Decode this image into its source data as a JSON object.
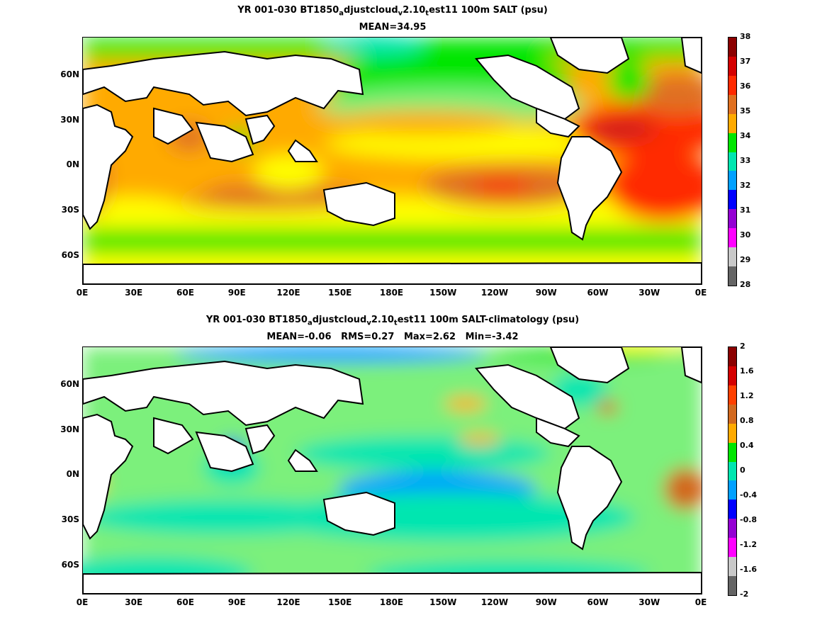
{
  "panels": [
    {
      "title_prefix": "YR 001-030 BT1850",
      "title_rest": "djustcloud",
      "title_mid": "2.10",
      "title_end": "est11 100m SALT (psu)",
      "subtitle": "MEAN=34.95",
      "colorbar": {
        "labels": [
          "38",
          "37",
          "36",
          "35",
          "34",
          "33",
          "32",
          "31",
          "30",
          "29",
          "28"
        ],
        "colors": [
          "#8b0000",
          "#d40000",
          "#ff2a00",
          "#e07020",
          "#ffaa00",
          "#00e600",
          "#00e6b0",
          "#00a0ff",
          "#0000ff",
          "#9400d3",
          "#ff00ff",
          "#c8c8c8",
          "#646464"
        ]
      }
    },
    {
      "title_prefix": "YR 001-030 BT1850",
      "title_rest": "djustcloud",
      "title_mid": "2.10",
      "title_end": "est11 100m SALT-climatology (psu)",
      "subtitle": "MEAN=-0.06   RMS=0.27   Max=2.62   Min=-3.42",
      "colorbar": {
        "labels": [
          "2",
          "1.6",
          "1.2",
          "0.8",
          "0.4",
          "0",
          "-0.4",
          "-0.8",
          "-1.2",
          "-1.6",
          "-2"
        ],
        "colors": [
          "#8b0000",
          "#d40000",
          "#ff4000",
          "#d2691e",
          "#ffaa00",
          "#00e600",
          "#00e6b0",
          "#00a0ff",
          "#0000ff",
          "#9400d3",
          "#ff00ff",
          "#c8c8c8",
          "#646464"
        ]
      }
    }
  ],
  "subscripts": {
    "a": "a",
    "v": "v",
    "t": "t"
  },
  "x_ticks": [
    "0E",
    "30E",
    "60E",
    "90E",
    "120E",
    "150E",
    "180E",
    "150W",
    "120W",
    "90W",
    "60W",
    "30W",
    "0E"
  ],
  "y_ticks": [
    "60N",
    "30N",
    "0N",
    "30S",
    "60S"
  ]
}
